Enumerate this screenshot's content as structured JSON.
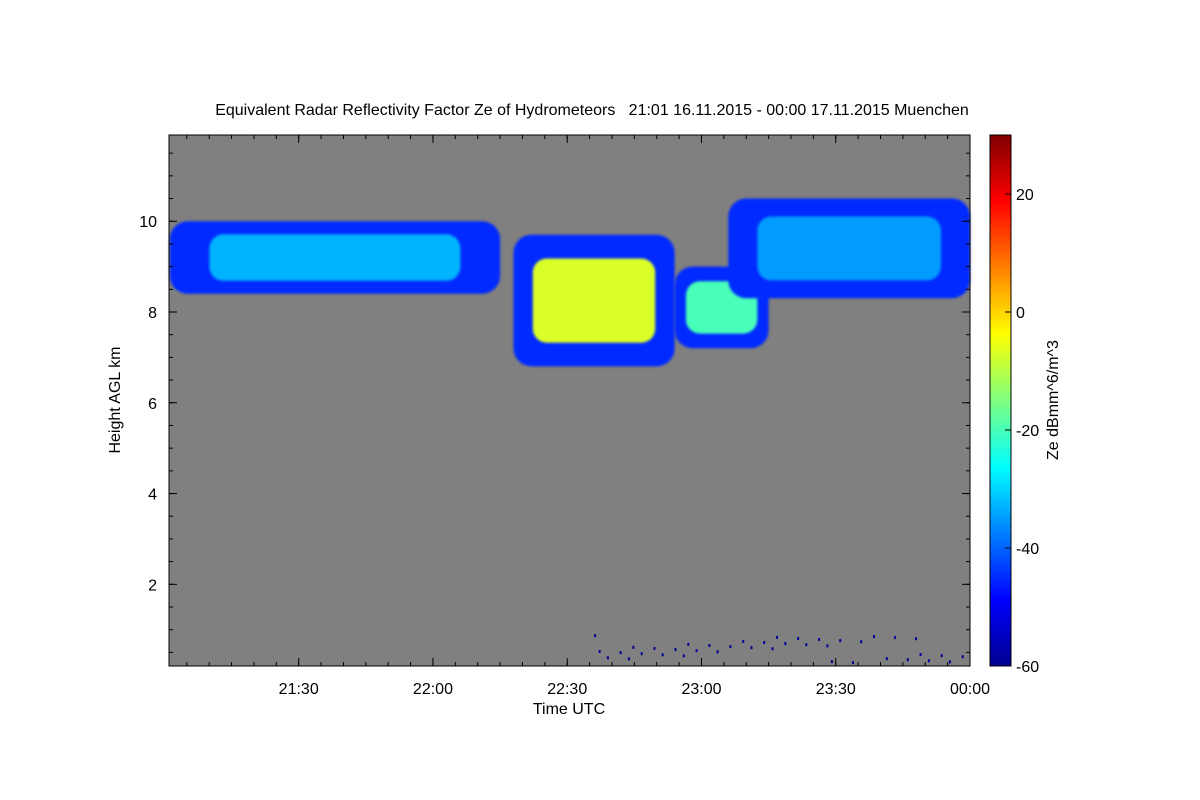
{
  "chart_data": {
    "type": "heatmap",
    "title": "Equivalent Radar Reflectivity Factor Ze of Hydrometeors   21:01 16.11.2015 - 00:00 17.11.2015 Muenchen",
    "xlabel": "Time UTC",
    "ylabel": "Height AGL km",
    "colorbar_label": "Ze dBmm^6/m^3",
    "x_range_hours": [
      21.017,
      24.0
    ],
    "x_ticks": [
      {
        "hour": 21.5,
        "label": "21:30"
      },
      {
        "hour": 22.0,
        "label": "22:00"
      },
      {
        "hour": 22.5,
        "label": "22:30"
      },
      {
        "hour": 23.0,
        "label": "23:00"
      },
      {
        "hour": 23.5,
        "label": "23:30"
      },
      {
        "hour": 24.0,
        "label": "00:00"
      }
    ],
    "ylim": [
      0.2,
      11.9
    ],
    "y_ticks": [
      2,
      4,
      6,
      8,
      10
    ],
    "colorbar_range": [
      -60,
      30
    ],
    "colorbar_ticks": [
      -60,
      -40,
      -20,
      0,
      20
    ],
    "colormap": "jet",
    "background_color": "#808080",
    "features": [
      {
        "name": "upper cirrus band (left)",
        "t_start": 21.02,
        "t_end": 22.25,
        "h_bottom": 8.4,
        "h_top": 10.0,
        "ze_dbz": -33
      },
      {
        "name": "main cloud core",
        "t_start": 22.3,
        "t_end": 22.9,
        "h_bottom": 6.8,
        "h_top": 9.7,
        "ze_dbz": -7
      },
      {
        "name": "secondary cloud core",
        "t_start": 22.9,
        "t_end": 23.25,
        "h_bottom": 7.2,
        "h_top": 9.0,
        "ze_dbz": -20
      },
      {
        "name": "upper cirrus band (right)",
        "t_start": 23.1,
        "t_end": 24.0,
        "h_bottom": 8.3,
        "h_top": 10.5,
        "ze_dbz": -35
      },
      {
        "name": "low-level speckles",
        "t_start": 22.6,
        "t_end": 24.0,
        "h_bottom": 0.3,
        "h_top": 0.9,
        "ze_dbz": -58
      }
    ]
  }
}
